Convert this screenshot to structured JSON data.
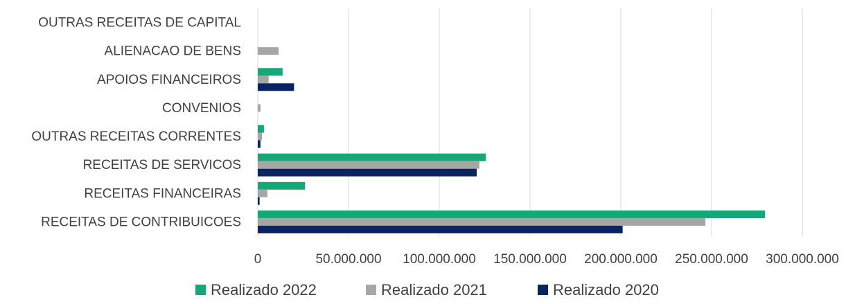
{
  "chart_data": {
    "type": "bar",
    "orientation": "horizontal",
    "categories": [
      "OUTRAS RECEITAS DE CAPITAL",
      "ALIENACAO DE BENS",
      "APOIOS FINANCEIROS",
      "CONVENIOS",
      "OUTRAS RECEITAS CORRENTES",
      "RECEITAS DE SERVICOS",
      "RECEITAS FINANCEIRAS",
      "RECEITAS DE CONTRIBUICOES"
    ],
    "series": [
      {
        "name": "Realizado 2022",
        "color": "#13a876",
        "values": [
          0,
          0,
          13700000,
          0,
          3400000,
          125600000,
          26000000,
          279400000
        ]
      },
      {
        "name": "Realizado 2021",
        "color": "#a6a6a6",
        "values": [
          0,
          11500000,
          6000000,
          1500000,
          2300000,
          122100000,
          5300000,
          246600000
        ]
      },
      {
        "name": "Realizado 2020",
        "color": "#0a2361",
        "values": [
          0,
          0,
          20000000,
          0,
          1500000,
          120600000,
          1000000,
          201000000
        ]
      }
    ],
    "xlim": [
      0,
      300000000
    ],
    "xticks": [
      0,
      {
        "value": 50000000,
        "label": "50.000.000"
      },
      {
        "value": 100000000,
        "label": "100.000.000"
      },
      {
        "value": 150000000,
        "label": "150.000.000"
      },
      {
        "value": 200000000,
        "label": "200.000.000"
      },
      {
        "value": 250000000,
        "label": "250.000.000"
      },
      {
        "value": 300000000,
        "label": "300.000.000"
      }
    ],
    "grid": true,
    "legend": "bottom"
  }
}
